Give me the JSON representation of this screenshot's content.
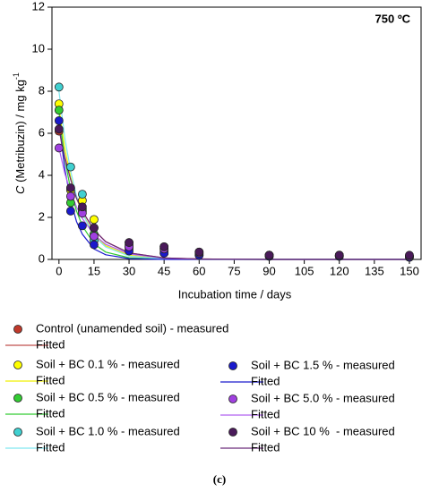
{
  "chart_data": {
    "type": "scatter",
    "annotation": "750 ºC",
    "x_label": "Incubation time / days",
    "y_label": {
      "italic": "C",
      "text": " (Metribuzin) / mg kg",
      "superscript": "-1"
    },
    "caption": "(c)",
    "xlim": [
      -3,
      155
    ],
    "xticks": [
      0,
      15,
      30,
      45,
      60,
      75,
      90,
      105,
      120,
      135,
      150
    ],
    "ylim": [
      0,
      12
    ],
    "yticks": [
      0,
      2,
      4,
      6,
      8,
      10,
      12
    ],
    "x": [
      0,
      5,
      10,
      15,
      30,
      45,
      60,
      90,
      120,
      150
    ],
    "fit_x": [
      0,
      2.5,
      5,
      7.5,
      10,
      15,
      20,
      30,
      45,
      60,
      90,
      150
    ],
    "series": [
      {
        "name": "Control (unamended soil) - measured",
        "fit_name": "Fitted",
        "color": "#c0392b",
        "line_color": "#c0504d",
        "values": [
          6.1,
          3.4,
          2.4,
          1.5,
          0.8,
          0.6,
          0.35,
          0.2,
          0.2,
          0.15
        ],
        "fit_values": [
          6.3,
          4.9,
          3.8,
          3.0,
          2.3,
          1.4,
          0.85,
          0.31,
          0.07,
          0.02,
          0,
          0
        ]
      },
      {
        "name": "Soil + BC 0.1 % - measured",
        "fit_name": "Fitted",
        "color": "#ffff00",
        "line_color": "#f0f000",
        "values": [
          7.4,
          3.3,
          2.8,
          1.9,
          0.7,
          0.5,
          0.3,
          0.2,
          0.2,
          0.15
        ],
        "fit_values": [
          7.2,
          5.3,
          3.9,
          2.9,
          2.2,
          1.2,
          0.65,
          0.2,
          0.03,
          0,
          0,
          0
        ]
      },
      {
        "name": "Soil + BC 0.5 % - measured",
        "fit_name": "Fitted",
        "color": "#33cc33",
        "line_color": "#33cc33",
        "values": [
          7.1,
          2.7,
          2.3,
          1.2,
          0.6,
          0.4,
          0.25,
          0.2,
          0.15,
          0.15
        ],
        "fit_values": [
          7.0,
          4.8,
          3.3,
          2.3,
          1.6,
          0.74,
          0.35,
          0.08,
          0.01,
          0,
          0,
          0
        ]
      },
      {
        "name": "Soil + BC 1.0 % - measured",
        "fit_name": "Fitted",
        "color": "#40d0d0",
        "line_color": "#80e8f0",
        "values": [
          8.2,
          4.4,
          3.1,
          0.9,
          0.5,
          0.3,
          0.2,
          0.15,
          0.15,
          0.1
        ],
        "fit_values": [
          8.0,
          5.8,
          4.2,
          3.0,
          2.2,
          1.1,
          0.59,
          0.16,
          0.02,
          0,
          0,
          0
        ]
      },
      {
        "name": "Soil + BC 1.5 % - measured",
        "fit_name": "Fitted",
        "color": "#1a1acc",
        "line_color": "#1a1acc",
        "values": [
          6.6,
          2.3,
          1.6,
          0.7,
          0.4,
          0.3,
          0.2,
          0.15,
          0.15,
          0.1
        ],
        "fit_values": [
          6.5,
          4.3,
          2.8,
          1.8,
          1.2,
          0.5,
          0.22,
          0.04,
          0,
          0,
          0,
          0
        ]
      },
      {
        "name": "Soil + BC 5.0 % - measured",
        "fit_name": "Fitted",
        "color": "#a040e0",
        "line_color": "#b060f0",
        "values": [
          5.3,
          3.0,
          2.2,
          1.1,
          0.6,
          0.5,
          0.3,
          0.2,
          0.2,
          0.15
        ],
        "fit_values": [
          5.3,
          4.1,
          3.2,
          2.5,
          1.95,
          1.18,
          0.72,
          0.26,
          0.06,
          0.01,
          0,
          0
        ]
      },
      {
        "name": "Soil + BC 10 %  - measured",
        "fit_name": "Fitted",
        "color": "#4a1a5a",
        "line_color": "#6a2a7a",
        "values": [
          6.2,
          3.4,
          2.5,
          1.5,
          0.8,
          0.6,
          0.35,
          0.2,
          0.2,
          0.2
        ],
        "fit_values": [
          6.2,
          4.8,
          3.8,
          2.9,
          2.3,
          1.4,
          0.84,
          0.31,
          0.07,
          0.02,
          0,
          0
        ]
      }
    ]
  }
}
